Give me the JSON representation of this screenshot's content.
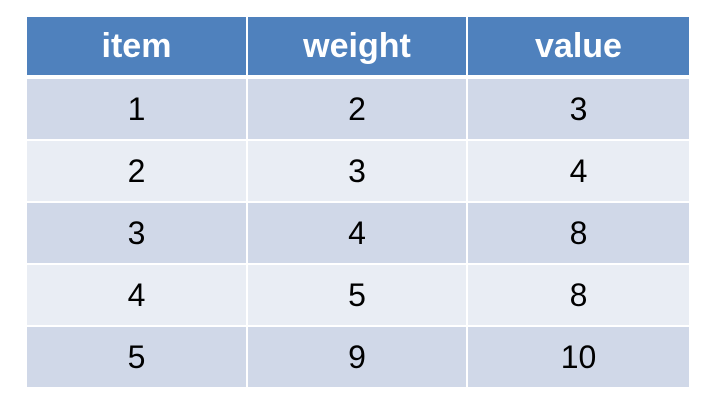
{
  "table": {
    "headers": [
      "item",
      "weight",
      "value"
    ],
    "rows": [
      [
        "1",
        "2",
        "3"
      ],
      [
        "2",
        "3",
        "4"
      ],
      [
        "3",
        "4",
        "8"
      ],
      [
        "4",
        "5",
        "8"
      ],
      [
        "5",
        "9",
        "10"
      ]
    ]
  },
  "colors": {
    "header_bg": "#4f81bd",
    "row_dark": "#d0d8e8",
    "row_light": "#e9edf4"
  }
}
